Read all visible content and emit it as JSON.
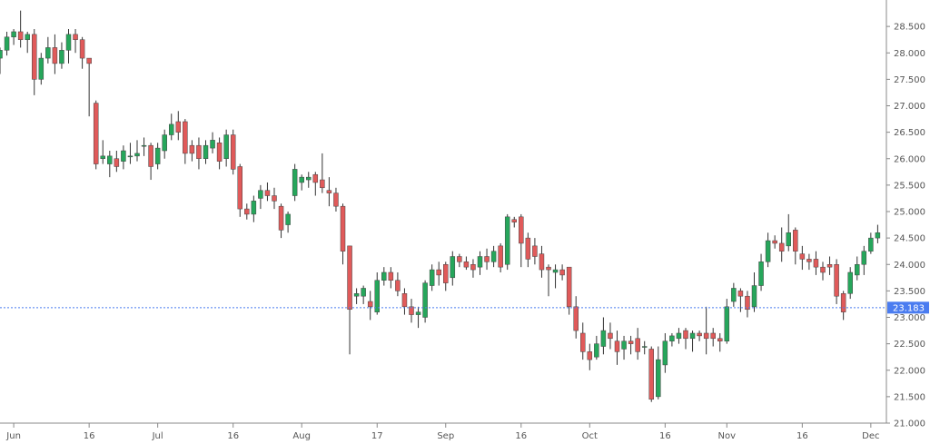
{
  "colors": {
    "up": "#26a65b",
    "down": "#e05a5a",
    "wick": "#333333",
    "price_line": "#4a7cf0",
    "price_tag_bg": "#4a7cf0",
    "axis": "#888888",
    "tick_text": "#555555",
    "background": "#ffffff"
  },
  "chart_data": {
    "type": "candlestick",
    "y_axis_side": "right",
    "ylim": [
      21.0,
      29.0
    ],
    "y_ticks": [
      "21.000",
      "21.500",
      "22.000",
      "22.500",
      "23.000",
      "23.500",
      "24.000",
      "24.500",
      "25.000",
      "25.500",
      "26.000",
      "26.500",
      "27.000",
      "27.500",
      "28.000",
      "28.500"
    ],
    "x_ticks": [
      {
        "label": "Jun",
        "index": 2
      },
      {
        "label": "16",
        "index": 13
      },
      {
        "label": "Jul",
        "index": 23
      },
      {
        "label": "16",
        "index": 34
      },
      {
        "label": "Aug",
        "index": 44
      },
      {
        "label": "17",
        "index": 55
      },
      {
        "label": "Sep",
        "index": 65
      },
      {
        "label": "16",
        "index": 76
      },
      {
        "label": "Oct",
        "index": 86
      },
      {
        "label": "16",
        "index": 97
      },
      {
        "label": "Nov",
        "index": 106
      },
      {
        "label": "16",
        "index": 117
      },
      {
        "label": "Dec",
        "index": 127
      }
    ],
    "current_price": 23.183,
    "current_price_label": "23.183",
    "candles": [
      [
        27.9,
        28.05,
        27.6,
        28.1
      ],
      [
        28.05,
        28.3,
        27.95,
        28.4
      ],
      [
        28.3,
        28.4,
        28.15,
        28.45
      ],
      [
        28.4,
        28.25,
        28.1,
        28.8
      ],
      [
        28.25,
        28.35,
        28.0,
        28.4
      ],
      [
        28.35,
        27.5,
        27.2,
        28.45
      ],
      [
        27.5,
        27.9,
        27.4,
        28.0
      ],
      [
        27.9,
        28.1,
        27.8,
        28.3
      ],
      [
        28.1,
        27.8,
        27.6,
        28.35
      ],
      [
        27.8,
        28.05,
        27.7,
        28.2
      ],
      [
        28.05,
        28.35,
        27.8,
        28.45
      ],
      [
        28.35,
        28.25,
        28.0,
        28.45
      ],
      [
        28.25,
        27.9,
        27.7,
        28.3
      ],
      [
        27.9,
        27.8,
        26.8,
        27.9
      ],
      [
        27.05,
        25.9,
        25.8,
        27.1
      ],
      [
        26.0,
        26.05,
        25.9,
        26.35
      ],
      [
        25.9,
        26.05,
        25.65,
        26.15
      ],
      [
        26.0,
        25.85,
        25.75,
        26.15
      ],
      [
        25.95,
        26.15,
        25.8,
        26.25
      ],
      [
        26.05,
        26.05,
        25.9,
        26.3
      ],
      [
        26.05,
        26.1,
        25.95,
        26.35
      ],
      [
        26.25,
        26.25,
        26.05,
        26.4
      ],
      [
        26.25,
        25.85,
        25.6,
        26.3
      ],
      [
        25.9,
        26.2,
        25.8,
        26.3
      ],
      [
        26.15,
        26.45,
        26.0,
        26.55
      ],
      [
        26.45,
        26.65,
        26.35,
        26.85
      ],
      [
        26.7,
        26.5,
        26.35,
        26.9
      ],
      [
        26.7,
        26.1,
        25.9,
        26.75
      ],
      [
        26.25,
        26.1,
        25.95,
        26.35
      ],
      [
        26.25,
        26.0,
        25.8,
        26.4
      ],
      [
        26.0,
        26.25,
        25.9,
        26.35
      ],
      [
        26.2,
        26.35,
        26.1,
        26.5
      ],
      [
        26.3,
        25.95,
        25.8,
        26.4
      ],
      [
        26.0,
        26.45,
        25.85,
        26.55
      ],
      [
        26.45,
        25.8,
        25.7,
        26.55
      ],
      [
        25.85,
        25.05,
        24.9,
        25.9
      ],
      [
        25.05,
        24.95,
        24.85,
        25.15
      ],
      [
        24.95,
        25.2,
        24.8,
        25.3
      ],
      [
        25.25,
        25.4,
        25.05,
        25.5
      ],
      [
        25.4,
        25.3,
        25.2,
        25.55
      ],
      [
        25.3,
        25.2,
        25.05,
        25.45
      ],
      [
        25.1,
        24.65,
        24.5,
        25.15
      ],
      [
        24.75,
        24.95,
        24.6,
        25.0
      ],
      [
        25.3,
        25.8,
        25.2,
        25.9
      ],
      [
        25.55,
        25.65,
        25.4,
        25.7
      ],
      [
        25.6,
        25.65,
        25.45,
        25.75
      ],
      [
        25.7,
        25.55,
        25.3,
        25.75
      ],
      [
        25.6,
        25.45,
        25.35,
        26.1
      ],
      [
        25.4,
        25.35,
        25.1,
        25.65
      ],
      [
        25.35,
        25.1,
        25.0,
        25.45
      ],
      [
        25.1,
        24.25,
        24.0,
        25.15
      ],
      [
        24.35,
        23.15,
        22.3,
        24.35
      ],
      [
        23.4,
        23.45,
        23.25,
        23.55
      ],
      [
        23.4,
        23.55,
        23.25,
        23.6
      ],
      [
        23.3,
        23.2,
        22.95,
        23.5
      ],
      [
        23.1,
        23.7,
        23.05,
        23.85
      ],
      [
        23.7,
        23.85,
        23.6,
        23.95
      ],
      [
        23.85,
        23.7,
        23.55,
        23.95
      ],
      [
        23.7,
        23.5,
        23.4,
        23.85
      ],
      [
        23.45,
        23.2,
        23.05,
        23.55
      ],
      [
        23.2,
        23.05,
        22.9,
        23.35
      ],
      [
        23.05,
        23.1,
        22.8,
        23.2
      ],
      [
        23.0,
        23.65,
        22.9,
        23.7
      ],
      [
        23.6,
        23.9,
        23.5,
        24.0
      ],
      [
        23.9,
        23.8,
        23.6,
        24.05
      ],
      [
        24.0,
        23.65,
        23.5,
        24.05
      ],
      [
        23.75,
        24.15,
        23.6,
        24.25
      ],
      [
        24.15,
        24.05,
        23.95,
        24.2
      ],
      [
        24.05,
        23.95,
        23.9,
        24.15
      ],
      [
        24.0,
        23.9,
        23.75,
        24.1
      ],
      [
        23.95,
        24.15,
        23.8,
        24.25
      ],
      [
        24.15,
        24.05,
        23.9,
        24.3
      ],
      [
        24.05,
        24.25,
        23.95,
        24.35
      ],
      [
        24.35,
        23.95,
        23.85,
        24.4
      ],
      [
        24.0,
        24.9,
        23.9,
        24.95
      ],
      [
        24.85,
        24.8,
        24.7,
        24.9
      ],
      [
        24.9,
        24.4,
        23.95,
        24.95
      ],
      [
        24.5,
        24.1,
        23.95,
        24.6
      ],
      [
        24.35,
        24.15,
        24.0,
        24.5
      ],
      [
        24.2,
        23.9,
        23.75,
        24.35
      ],
      [
        23.95,
        23.9,
        23.4,
        24.0
      ],
      [
        23.85,
        23.9,
        23.55,
        24.0
      ],
      [
        23.9,
        23.8,
        23.7,
        24.0
      ],
      [
        23.95,
        23.2,
        23.05,
        23.95
      ],
      [
        23.2,
        22.75,
        22.6,
        23.4
      ],
      [
        22.7,
        22.35,
        22.2,
        22.9
      ],
      [
        22.35,
        22.2,
        22.0,
        22.5
      ],
      [
        22.25,
        22.5,
        22.2,
        22.65
      ],
      [
        22.45,
        22.75,
        22.3,
        23.0
      ],
      [
        22.7,
        22.6,
        22.4,
        22.9
      ],
      [
        22.55,
        22.35,
        22.1,
        22.75
      ],
      [
        22.4,
        22.55,
        22.2,
        22.65
      ],
      [
        22.55,
        22.5,
        22.3,
        22.65
      ],
      [
        22.6,
        22.35,
        22.2,
        22.8
      ],
      [
        22.45,
        22.45,
        22.3,
        22.55
      ],
      [
        22.4,
        21.45,
        21.4,
        22.45
      ],
      [
        21.5,
        22.2,
        21.45,
        22.45
      ],
      [
        22.1,
        22.55,
        21.95,
        22.7
      ],
      [
        22.55,
        22.65,
        22.45,
        22.7
      ],
      [
        22.6,
        22.7,
        22.5,
        22.8
      ],
      [
        22.75,
        22.6,
        22.4,
        22.8
      ],
      [
        22.6,
        22.7,
        22.35,
        22.75
      ],
      [
        22.7,
        22.65,
        22.55,
        22.75
      ],
      [
        22.7,
        22.6,
        22.3,
        23.2
      ],
      [
        22.7,
        22.6,
        22.45,
        22.8
      ],
      [
        22.6,
        22.55,
        22.35,
        22.7
      ],
      [
        22.55,
        23.2,
        22.5,
        23.35
      ],
      [
        23.3,
        23.55,
        23.2,
        23.65
      ],
      [
        23.5,
        23.4,
        23.1,
        23.55
      ],
      [
        23.4,
        23.15,
        23.0,
        23.5
      ],
      [
        23.2,
        23.6,
        23.1,
        23.85
      ],
      [
        23.6,
        24.05,
        23.5,
        24.2
      ],
      [
        24.05,
        24.45,
        23.95,
        24.6
      ],
      [
        24.45,
        24.4,
        24.3,
        24.55
      ],
      [
        24.4,
        24.25,
        24.05,
        24.7
      ],
      [
        24.35,
        24.6,
        24.25,
        24.95
      ],
      [
        24.65,
        24.25,
        24.0,
        24.7
      ],
      [
        24.2,
        24.1,
        23.9,
        24.35
      ],
      [
        24.1,
        24.05,
        23.9,
        24.2
      ],
      [
        24.1,
        23.95,
        23.8,
        24.25
      ],
      [
        23.95,
        23.85,
        23.7,
        24.05
      ],
      [
        24.0,
        23.95,
        23.8,
        24.15
      ],
      [
        24.0,
        23.4,
        23.25,
        24.1
      ],
      [
        23.45,
        23.1,
        22.95,
        23.5
      ],
      [
        23.45,
        23.85,
        23.35,
        23.95
      ],
      [
        23.8,
        24.0,
        23.7,
        24.15
      ],
      [
        24.0,
        24.25,
        23.8,
        24.35
      ],
      [
        24.25,
        24.5,
        24.2,
        24.6
      ],
      [
        24.5,
        24.6,
        24.4,
        24.75
      ]
    ]
  }
}
